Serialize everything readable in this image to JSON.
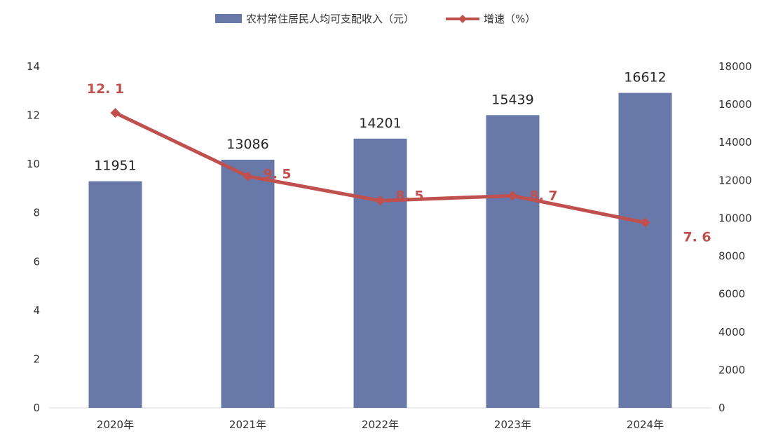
{
  "chart_data": {
    "type": "bar",
    "categories": [
      "2020年",
      "2021年",
      "2022年",
      "2023年",
      "2024年"
    ],
    "series": [
      {
        "name": "农村常住居民人均可支配收入（元）",
        "type": "bar",
        "axis": "right",
        "values": [
          11951,
          13086,
          14201,
          15439,
          16612
        ],
        "value_labels": [
          "11951",
          "13086",
          "14201",
          "15439",
          "16612"
        ],
        "color": "#6778A9"
      },
      {
        "name": "增速（%）",
        "type": "line",
        "axis": "left",
        "marker": "diamond",
        "values": [
          12.1,
          9.5,
          8.5,
          8.7,
          7.6
        ],
        "value_labels": [
          "12. 1",
          "9. 5",
          "8. 5",
          "8. 7",
          "7. 6"
        ],
        "color": "#C0504D"
      }
    ],
    "left_axis": {
      "ylim": [
        0,
        14
      ],
      "ticks": [
        "0",
        "2",
        "4",
        "6",
        "8",
        "10",
        "12",
        "14"
      ]
    },
    "right_axis": {
      "ylim": [
        0,
        18000
      ],
      "ticks": [
        "0",
        "2000",
        "4000",
        "6000",
        "8000",
        "10000",
        "12000",
        "14000",
        "16000",
        "18000"
      ]
    },
    "legend_position": "top-center",
    "grid": false,
    "title": "",
    "xlabel": "",
    "ylabel": ""
  }
}
